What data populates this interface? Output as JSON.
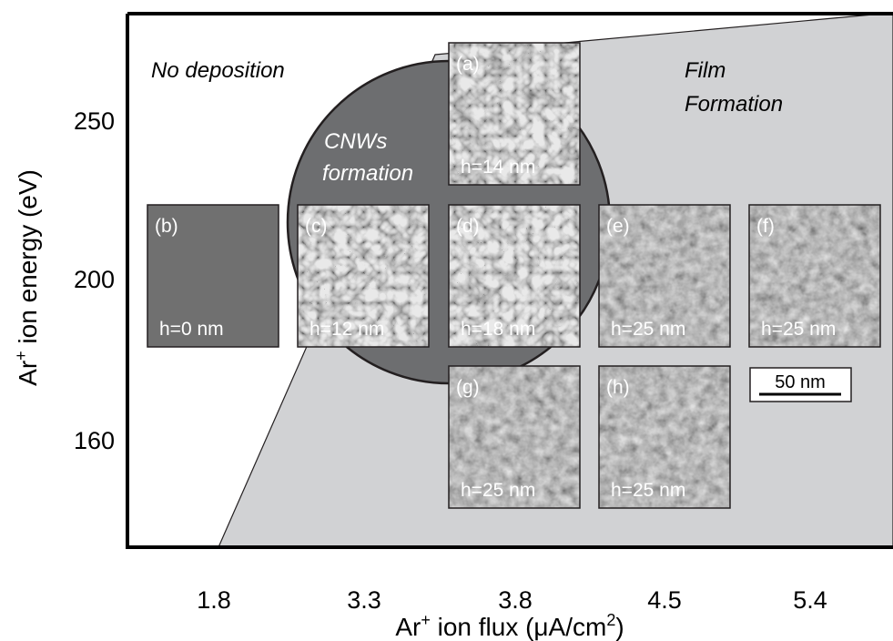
{
  "x_axis": {
    "title": [
      "Ar",
      "+",
      " ion flux (μA/cm",
      "2",
      ")"
    ],
    "ticks": [
      "1.8",
      "3.3",
      "3.8",
      "4.5",
      "5.4"
    ]
  },
  "y_axis": {
    "title": [
      "Ar",
      "+",
      " ion energy  (eV)"
    ],
    "ticks": [
      "250",
      "200",
      "160"
    ]
  },
  "regions": {
    "no_deposition": "No deposition",
    "cnws": [
      "CNWs",
      "formation"
    ],
    "film": [
      "Film",
      "Formation"
    ]
  },
  "panels": [
    {
      "label": "(a)",
      "caption": "h=14 nm"
    },
    {
      "label": "(b)",
      "caption": "h=0 nm"
    },
    {
      "label": "(c)",
      "caption": "h=12 nm"
    },
    {
      "label": "(d)",
      "caption": "h=18 nm"
    },
    {
      "label": "(e)",
      "caption": "h=25 nm"
    },
    {
      "label": "(f)",
      "caption": "h=25 nm"
    },
    {
      "label": "(g)",
      "caption": "h=25 nm"
    },
    {
      "label": "(h)",
      "caption": "h=25 nm"
    }
  ],
  "scale_bar": "50 nm"
}
